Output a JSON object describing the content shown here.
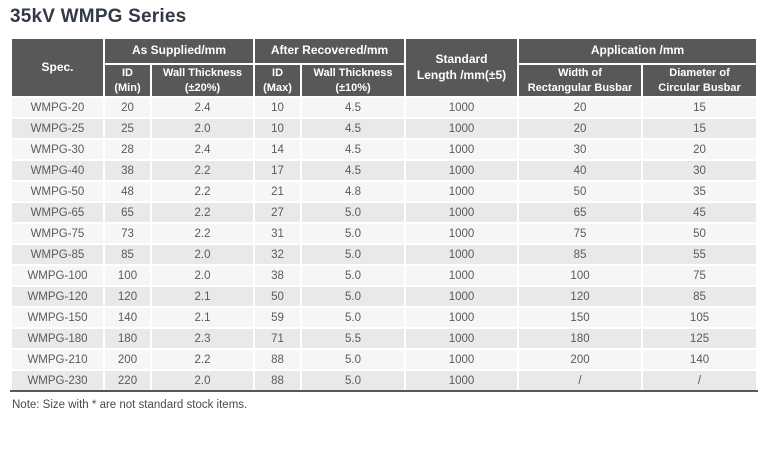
{
  "page_title": "35kV WMPG Series",
  "note": "Note: Size with * are not standard stock items.",
  "colors": {
    "header_bg": "#58585a",
    "header_text": "#ffffff",
    "row_odd_bg": "#f6f6f6",
    "row_even_bg": "#e9e9e9",
    "body_text": "#5a5a5c",
    "title_text": "#323a45",
    "cell_divider": "#ffffff",
    "table_bottom_rule": "#58585a"
  },
  "table": {
    "header": {
      "spec": "Spec.",
      "as_supplied": "As Supplied/mm",
      "after_recovered": "After Recovered/mm",
      "standard_length": "Standard\nLength /mm(±5)",
      "application": "Application /mm",
      "id_min": "ID\n(Min)",
      "wall_thickness_20": "Wall Thickness\n(±20%)",
      "id_max": "ID\n(Max)",
      "wall_thickness_10": "Wall Thickness\n(±10%)",
      "width_rect": "Width of\nRectangular Busbar",
      "diameter_circ": "Diameter of\nCircular Busbar"
    },
    "rows": [
      [
        "WMPG-20",
        "20",
        "2.4",
        "10",
        "4.5",
        "1000",
        "20",
        "15"
      ],
      [
        "WMPG-25",
        "25",
        "2.0",
        "10",
        "4.5",
        "1000",
        "20",
        "15"
      ],
      [
        "WMPG-30",
        "28",
        "2.4",
        "14",
        "4.5",
        "1000",
        "30",
        "20"
      ],
      [
        "WMPG-40",
        "38",
        "2.2",
        "17",
        "4.5",
        "1000",
        "40",
        "30"
      ],
      [
        "WMPG-50",
        "48",
        "2.2",
        "21",
        "4.8",
        "1000",
        "50",
        "35"
      ],
      [
        "WMPG-65",
        "65",
        "2.2",
        "27",
        "5.0",
        "1000",
        "65",
        "45"
      ],
      [
        "WMPG-75",
        "73",
        "2.2",
        "31",
        "5.0",
        "1000",
        "75",
        "50"
      ],
      [
        "WMPG-85",
        "85",
        "2.0",
        "32",
        "5.0",
        "1000",
        "85",
        "55"
      ],
      [
        "WMPG-100",
        "100",
        "2.0",
        "38",
        "5.0",
        "1000",
        "100",
        "75"
      ],
      [
        "WMPG-120",
        "120",
        "2.1",
        "50",
        "5.0",
        "1000",
        "120",
        "85"
      ],
      [
        "WMPG-150",
        "140",
        "2.1",
        "59",
        "5.0",
        "1000",
        "150",
        "105"
      ],
      [
        "WMPG-180",
        "180",
        "2.3",
        "71",
        "5.5",
        "1000",
        "180",
        "125"
      ],
      [
        "WMPG-210",
        "200",
        "2.2",
        "88",
        "5.0",
        "1000",
        "200",
        "140"
      ],
      [
        "WMPG-230",
        "220",
        "2.0",
        "88",
        "5.0",
        "1000",
        "/",
        "/"
      ]
    ]
  },
  "chart_data": {
    "type": "table",
    "title": "35kV WMPG Series",
    "columns": [
      "Spec.",
      "As Supplied/mm ID (Min)",
      "As Supplied/mm Wall Thickness (±20%)",
      "After Recovered/mm ID (Max)",
      "After Recovered/mm Wall Thickness (±10%)",
      "Standard Length /mm(±5)",
      "Application/mm Width of Rectangular Busbar",
      "Application/mm Diameter of Circular Busbar"
    ],
    "rows": [
      [
        "WMPG-20",
        20,
        2.4,
        10,
        4.5,
        1000,
        "20",
        "15"
      ],
      [
        "WMPG-25",
        25,
        2.0,
        10,
        4.5,
        1000,
        "20",
        "15"
      ],
      [
        "WMPG-30",
        28,
        2.4,
        14,
        4.5,
        1000,
        "30",
        "20"
      ],
      [
        "WMPG-40",
        38,
        2.2,
        17,
        4.5,
        1000,
        "40",
        "30"
      ],
      [
        "WMPG-50",
        48,
        2.2,
        21,
        4.8,
        1000,
        "50",
        "35"
      ],
      [
        "WMPG-65",
        65,
        2.2,
        27,
        5.0,
        1000,
        "65",
        "45"
      ],
      [
        "WMPG-75",
        73,
        2.2,
        31,
        5.0,
        1000,
        "75",
        "50"
      ],
      [
        "WMPG-85",
        85,
        2.0,
        32,
        5.0,
        1000,
        "85",
        "55"
      ],
      [
        "WMPG-100",
        100,
        2.0,
        38,
        5.0,
        1000,
        "100",
        "75"
      ],
      [
        "WMPG-120",
        120,
        2.1,
        50,
        5.0,
        1000,
        "120",
        "85"
      ],
      [
        "WMPG-150",
        140,
        2.1,
        59,
        5.0,
        1000,
        "150",
        "105"
      ],
      [
        "WMPG-180",
        180,
        2.3,
        71,
        5.5,
        1000,
        "180",
        "125"
      ],
      [
        "WMPG-210",
        200,
        2.2,
        88,
        5.0,
        1000,
        "200",
        "140"
      ],
      [
        "WMPG-230",
        220,
        2.0,
        88,
        5.0,
        1000,
        "/",
        "/"
      ]
    ]
  }
}
